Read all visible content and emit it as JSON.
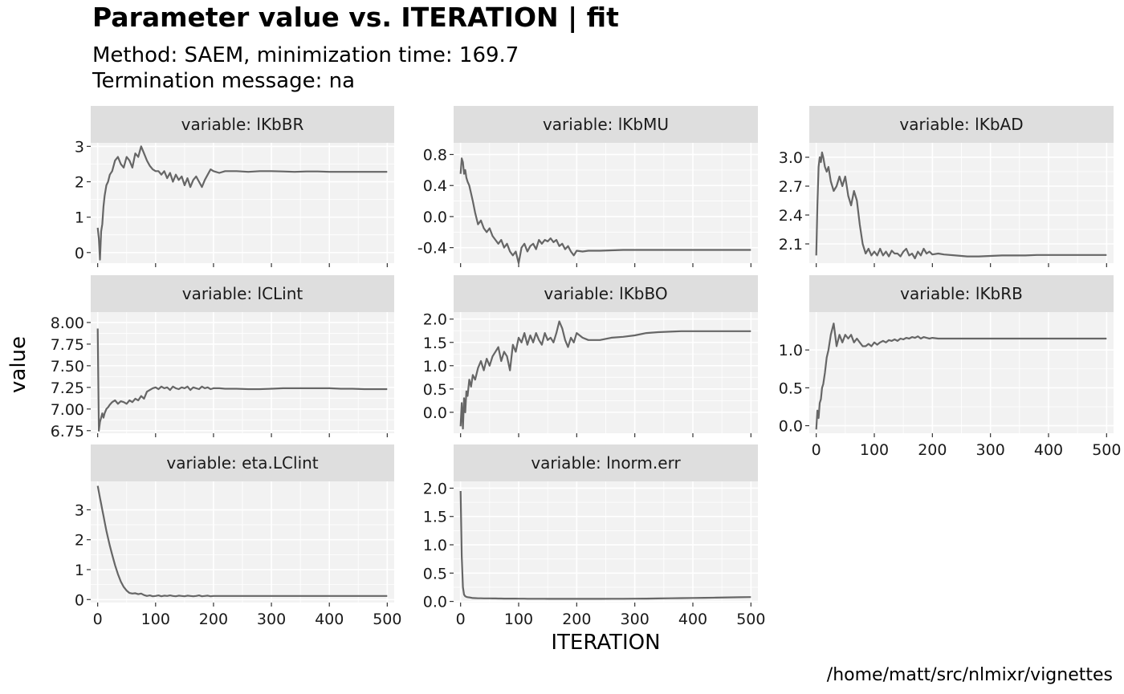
{
  "chart_data": {
    "type": "line",
    "title": "Parameter value vs. ITERATION | fit",
    "subtitle_lines": [
      "Method: SAEM, minimization time: 169.7",
      "Termination message: na"
    ],
    "xlabel": "ITERATION",
    "ylabel": "value",
    "caption": "/home/matt/src/nlmixr/vignettes",
    "line_color": "#666666",
    "panel_background": "#f2f2f2",
    "strip_background": "#dedede",
    "grid": true,
    "xlim": [
      -12,
      512
    ],
    "x_ticks": [
      0,
      100,
      200,
      300,
      400,
      500
    ],
    "panels": [
      {
        "strip": "variable: lKbBR",
        "ylim": [
          -0.3,
          3.1
        ],
        "y_ticks": [
          0,
          1,
          2,
          3
        ],
        "y_tick_labels": [
          "0",
          "1",
          "2",
          "3"
        ],
        "show_x_axis": false,
        "x": [
          0,
          2,
          4,
          6,
          8,
          10,
          12,
          15,
          18,
          21,
          25,
          30,
          35,
          40,
          45,
          50,
          55,
          60,
          65,
          70,
          75,
          80,
          85,
          90,
          95,
          100,
          105,
          110,
          115,
          120,
          125,
          130,
          135,
          140,
          145,
          150,
          155,
          160,
          165,
          170,
          175,
          180,
          185,
          190,
          195,
          200,
          210,
          220,
          240,
          260,
          280,
          300,
          320,
          340,
          360,
          380,
          400,
          420,
          440,
          460,
          480,
          500
        ],
        "y": [
          0.7,
          0.4,
          -0.2,
          0.6,
          0.8,
          1.3,
          1.6,
          1.9,
          2.0,
          2.2,
          2.3,
          2.6,
          2.7,
          2.5,
          2.4,
          2.7,
          2.6,
          2.4,
          2.8,
          2.7,
          3.0,
          2.8,
          2.6,
          2.45,
          2.35,
          2.3,
          2.3,
          2.2,
          2.3,
          2.1,
          2.25,
          2.0,
          2.2,
          2.05,
          2.15,
          1.9,
          2.1,
          1.85,
          2.05,
          2.15,
          2.0,
          1.85,
          2.05,
          2.2,
          2.35,
          2.3,
          2.25,
          2.3,
          2.3,
          2.28,
          2.3,
          2.3,
          2.29,
          2.28,
          2.29,
          2.29,
          2.28,
          2.28,
          2.28,
          2.28,
          2.28,
          2.28
        ]
      },
      {
        "strip": "variable: lKbMU",
        "ylim": [
          -0.6,
          0.95
        ],
        "y_ticks": [
          -0.4,
          0.0,
          0.4,
          0.8
        ],
        "y_tick_labels": [
          "-0.4",
          "0.0",
          "0.4",
          "0.8"
        ],
        "show_x_axis": false,
        "x": [
          0,
          2,
          4,
          6,
          8,
          10,
          12,
          15,
          18,
          21,
          25,
          30,
          35,
          40,
          45,
          50,
          55,
          60,
          65,
          70,
          75,
          80,
          85,
          90,
          95,
          100,
          105,
          110,
          115,
          120,
          125,
          130,
          135,
          140,
          145,
          150,
          155,
          160,
          165,
          170,
          175,
          180,
          185,
          190,
          195,
          200,
          210,
          220,
          240,
          260,
          280,
          300,
          320,
          340,
          360,
          380,
          400,
          420,
          440,
          460,
          480,
          500
        ],
        "y": [
          0.55,
          0.75,
          0.7,
          0.55,
          0.6,
          0.5,
          0.45,
          0.4,
          0.3,
          0.2,
          0.05,
          -0.1,
          -0.05,
          -0.15,
          -0.2,
          -0.15,
          -0.25,
          -0.3,
          -0.35,
          -0.3,
          -0.4,
          -0.35,
          -0.45,
          -0.5,
          -0.45,
          -0.6,
          -0.4,
          -0.35,
          -0.45,
          -0.38,
          -0.35,
          -0.42,
          -0.3,
          -0.35,
          -0.3,
          -0.32,
          -0.28,
          -0.33,
          -0.3,
          -0.38,
          -0.35,
          -0.42,
          -0.38,
          -0.45,
          -0.5,
          -0.44,
          -0.45,
          -0.44,
          -0.44,
          -0.435,
          -0.43,
          -0.43,
          -0.43,
          -0.43,
          -0.43,
          -0.43,
          -0.43,
          -0.43,
          -0.43,
          -0.43,
          -0.43,
          -0.43
        ]
      },
      {
        "strip": "variable: lKbAD",
        "ylim": [
          1.9,
          3.15
        ],
        "y_ticks": [
          2.1,
          2.4,
          2.7,
          3.0
        ],
        "y_tick_labels": [
          "2.1",
          "2.4",
          "2.7",
          "3.0"
        ],
        "show_x_axis": false,
        "x": [
          0,
          2,
          4,
          6,
          8,
          10,
          12,
          15,
          18,
          21,
          25,
          30,
          35,
          40,
          45,
          50,
          55,
          60,
          65,
          70,
          75,
          80,
          85,
          90,
          95,
          100,
          105,
          110,
          115,
          120,
          125,
          130,
          135,
          140,
          145,
          150,
          155,
          160,
          165,
          170,
          175,
          180,
          185,
          190,
          195,
          200,
          210,
          220,
          240,
          260,
          280,
          300,
          320,
          340,
          360,
          380,
          400,
          420,
          440,
          460,
          480,
          500
        ],
        "y": [
          1.98,
          2.5,
          2.9,
          3.0,
          2.95,
          3.05,
          3.0,
          2.9,
          2.85,
          2.9,
          2.75,
          2.65,
          2.7,
          2.8,
          2.7,
          2.8,
          2.6,
          2.5,
          2.65,
          2.55,
          2.3,
          2.1,
          2.0,
          2.05,
          1.98,
          2.02,
          1.98,
          2.05,
          1.98,
          2.02,
          1.97,
          2.03,
          2.0,
          2.0,
          1.97,
          2.02,
          2.05,
          1.98,
          2.0,
          1.95,
          2.02,
          1.98,
          2.05,
          2.0,
          2.02,
          1.99,
          2.0,
          1.99,
          1.98,
          1.97,
          1.97,
          1.975,
          1.98,
          1.98,
          1.98,
          1.985,
          1.985,
          1.985,
          1.985,
          1.985,
          1.985,
          1.985
        ]
      },
      {
        "strip": "variable: lCLint",
        "ylim": [
          6.72,
          8.12
        ],
        "y_ticks": [
          6.75,
          7.0,
          7.25,
          7.5,
          7.75,
          8.0
        ],
        "y_tick_labels": [
          "6.75",
          "7.00",
          "7.25",
          "7.50",
          "7.75",
          "8.00"
        ],
        "show_x_axis": false,
        "x": [
          0,
          2,
          4,
          6,
          8,
          10,
          12,
          15,
          18,
          21,
          25,
          30,
          35,
          40,
          45,
          50,
          55,
          60,
          65,
          70,
          75,
          80,
          85,
          90,
          95,
          100,
          105,
          110,
          115,
          120,
          125,
          130,
          135,
          140,
          145,
          150,
          155,
          160,
          165,
          170,
          175,
          180,
          185,
          190,
          195,
          200,
          210,
          220,
          240,
          260,
          280,
          300,
          320,
          340,
          360,
          380,
          400,
          420,
          440,
          460,
          480,
          500
        ],
        "y": [
          7.93,
          6.75,
          6.85,
          6.9,
          6.95,
          6.9,
          6.95,
          7.0,
          7.02,
          7.05,
          7.08,
          7.1,
          7.06,
          7.09,
          7.08,
          7.06,
          7.1,
          7.08,
          7.12,
          7.1,
          7.15,
          7.12,
          7.2,
          7.22,
          7.24,
          7.25,
          7.23,
          7.26,
          7.24,
          7.25,
          7.22,
          7.26,
          7.24,
          7.23,
          7.25,
          7.24,
          7.26,
          7.22,
          7.25,
          7.24,
          7.23,
          7.26,
          7.24,
          7.25,
          7.23,
          7.24,
          7.24,
          7.235,
          7.235,
          7.23,
          7.23,
          7.235,
          7.24,
          7.24,
          7.24,
          7.24,
          7.24,
          7.235,
          7.235,
          7.23,
          7.23,
          7.23
        ]
      },
      {
        "strip": "variable: lKbBO",
        "ylim": [
          -0.45,
          2.15
        ],
        "y_ticks": [
          0.0,
          0.5,
          1.0,
          1.5,
          2.0
        ],
        "y_tick_labels": [
          "0.0",
          "0.5",
          "1.0",
          "1.5",
          "2.0"
        ],
        "show_x_axis": false,
        "x": [
          0,
          2,
          4,
          6,
          8,
          10,
          12,
          15,
          18,
          21,
          25,
          30,
          35,
          40,
          45,
          50,
          55,
          60,
          65,
          70,
          75,
          80,
          85,
          90,
          95,
          100,
          105,
          110,
          115,
          120,
          125,
          130,
          135,
          140,
          145,
          150,
          155,
          160,
          165,
          170,
          175,
          180,
          185,
          190,
          195,
          200,
          210,
          220,
          240,
          260,
          280,
          300,
          320,
          340,
          360,
          380,
          400,
          420,
          440,
          460,
          480,
          500
        ],
        "y": [
          -0.3,
          0.2,
          -0.35,
          0.3,
          0.0,
          0.45,
          0.35,
          0.7,
          0.55,
          0.8,
          0.7,
          0.95,
          1.1,
          0.9,
          1.15,
          1.0,
          1.2,
          1.3,
          1.4,
          1.1,
          1.3,
          1.2,
          0.9,
          1.45,
          1.3,
          1.6,
          1.5,
          1.7,
          1.45,
          1.65,
          1.5,
          1.7,
          1.55,
          1.45,
          1.7,
          1.55,
          1.6,
          1.5,
          1.7,
          1.95,
          1.8,
          1.55,
          1.4,
          1.6,
          1.5,
          1.7,
          1.6,
          1.55,
          1.55,
          1.6,
          1.62,
          1.65,
          1.7,
          1.72,
          1.73,
          1.74,
          1.74,
          1.74,
          1.74,
          1.74,
          1.74,
          1.74
        ]
      },
      {
        "strip": "variable: lKbRB",
        "ylim": [
          -0.1,
          1.5
        ],
        "y_ticks": [
          0.0,
          0.5,
          1.0
        ],
        "y_tick_labels": [
          "0.0",
          "0.5",
          "1.0"
        ],
        "show_x_axis": true,
        "x": [
          0,
          2,
          4,
          6,
          8,
          10,
          12,
          15,
          18,
          21,
          25,
          30,
          35,
          40,
          45,
          50,
          55,
          60,
          65,
          70,
          75,
          80,
          85,
          90,
          95,
          100,
          105,
          110,
          115,
          120,
          125,
          130,
          135,
          140,
          145,
          150,
          155,
          160,
          165,
          170,
          175,
          180,
          185,
          190,
          195,
          200,
          210,
          220,
          240,
          260,
          280,
          300,
          320,
          340,
          360,
          380,
          400,
          420,
          440,
          460,
          480,
          500
        ],
        "y": [
          -0.05,
          0.2,
          0.1,
          0.3,
          0.35,
          0.5,
          0.55,
          0.7,
          0.9,
          1.0,
          1.2,
          1.35,
          1.05,
          1.2,
          1.1,
          1.2,
          1.15,
          1.2,
          1.1,
          1.15,
          1.1,
          1.05,
          1.05,
          1.08,
          1.05,
          1.1,
          1.07,
          1.1,
          1.12,
          1.1,
          1.13,
          1.12,
          1.14,
          1.12,
          1.15,
          1.14,
          1.16,
          1.15,
          1.17,
          1.16,
          1.18,
          1.15,
          1.17,
          1.16,
          1.15,
          1.16,
          1.15,
          1.15,
          1.15,
          1.15,
          1.15,
          1.15,
          1.15,
          1.15,
          1.15,
          1.15,
          1.15,
          1.15,
          1.15,
          1.15,
          1.15,
          1.15
        ]
      },
      {
        "strip": "variable: eta.LClint",
        "ylim": [
          -0.1,
          3.95
        ],
        "y_ticks": [
          0,
          1,
          2,
          3
        ],
        "y_tick_labels": [
          "0",
          "1",
          "2",
          "3"
        ],
        "show_x_axis": true,
        "x": [
          0,
          2,
          4,
          6,
          8,
          10,
          12,
          15,
          18,
          21,
          25,
          30,
          35,
          40,
          45,
          50,
          55,
          60,
          65,
          70,
          75,
          80,
          85,
          90,
          95,
          100,
          105,
          110,
          115,
          120,
          125,
          130,
          135,
          140,
          145,
          150,
          155,
          160,
          165,
          170,
          175,
          180,
          185,
          190,
          195,
          200,
          210,
          220,
          240,
          260,
          280,
          300,
          320,
          340,
          360,
          380,
          400,
          420,
          440,
          460,
          480,
          500
        ],
        "y": [
          3.8,
          3.6,
          3.4,
          3.2,
          3.0,
          2.8,
          2.6,
          2.3,
          2.05,
          1.8,
          1.5,
          1.15,
          0.85,
          0.6,
          0.42,
          0.3,
          0.22,
          0.2,
          0.21,
          0.18,
          0.2,
          0.15,
          0.12,
          0.14,
          0.11,
          0.12,
          0.14,
          0.11,
          0.13,
          0.12,
          0.14,
          0.12,
          0.11,
          0.13,
          0.12,
          0.11,
          0.13,
          0.12,
          0.11,
          0.12,
          0.14,
          0.11,
          0.12,
          0.13,
          0.11,
          0.12,
          0.12,
          0.12,
          0.12,
          0.12,
          0.12,
          0.12,
          0.12,
          0.12,
          0.12,
          0.12,
          0.12,
          0.12,
          0.12,
          0.12,
          0.12,
          0.12
        ]
      },
      {
        "strip": "variable: lnorm.err",
        "ylim": [
          -0.02,
          2.12
        ],
        "y_ticks": [
          0.0,
          0.5,
          1.0,
          1.5,
          2.0
        ],
        "y_tick_labels": [
          "0.0",
          "0.5",
          "1.0",
          "1.5",
          "2.0"
        ],
        "show_x_axis": true,
        "x": [
          0,
          2,
          4,
          6,
          8,
          10,
          12,
          15,
          18,
          21,
          25,
          30,
          35,
          40,
          45,
          50,
          55,
          60,
          65,
          70,
          75,
          80,
          85,
          90,
          95,
          100,
          105,
          110,
          115,
          120,
          125,
          130,
          135,
          140,
          145,
          150,
          155,
          160,
          165,
          170,
          175,
          180,
          185,
          190,
          195,
          200,
          210,
          220,
          240,
          260,
          280,
          300,
          320,
          340,
          360,
          380,
          400,
          420,
          440,
          460,
          480,
          500
        ],
        "y": [
          1.95,
          0.8,
          0.25,
          0.12,
          0.09,
          0.08,
          0.075,
          0.07,
          0.065,
          0.06,
          0.058,
          0.055,
          0.055,
          0.054,
          0.053,
          0.053,
          0.052,
          0.052,
          0.051,
          0.051,
          0.05,
          0.05,
          0.05,
          0.049,
          0.049,
          0.048,
          0.048,
          0.048,
          0.047,
          0.047,
          0.047,
          0.046,
          0.046,
          0.046,
          0.046,
          0.045,
          0.045,
          0.045,
          0.045,
          0.045,
          0.045,
          0.045,
          0.045,
          0.045,
          0.045,
          0.045,
          0.045,
          0.045,
          0.045,
          0.046,
          0.047,
          0.048,
          0.05,
          0.052,
          0.055,
          0.058,
          0.061,
          0.064,
          0.067,
          0.07,
          0.073,
          0.076
        ]
      }
    ]
  }
}
